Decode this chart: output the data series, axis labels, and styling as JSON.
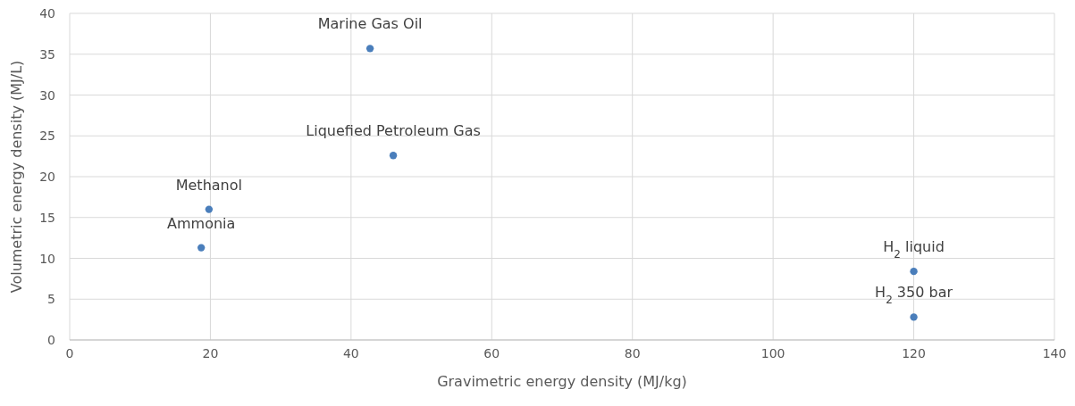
{
  "chart_data": {
    "type": "scatter",
    "xlabel": "Gravimetric energy density (MJ/kg)",
    "ylabel": "Volumetric energy density (MJ/L)",
    "x": [
      42.7,
      46,
      19.8,
      18.7,
      120,
      120
    ],
    "series": [
      {
        "color": "#4a7ebb",
        "values": [
          35.7,
          22.6,
          16,
          11.3,
          8.4,
          2.8
        ]
      }
    ],
    "xlim": [
      0,
      140
    ],
    "xticks": [
      0,
      20,
      40,
      60,
      80,
      100,
      120,
      140
    ],
    "ylim": [
      0,
      40
    ],
    "yticks": [
      0,
      5,
      10,
      15,
      20,
      25,
      30,
      35,
      40
    ],
    "grid": true,
    "marker": "circle",
    "annotations": [
      {
        "text": "Marine Gas Oil",
        "x": 42.7,
        "y": 35.7
      },
      {
        "text": "Liquefied Petroleum Gas",
        "x": 46,
        "y": 22.6
      },
      {
        "text": "Methanol",
        "x": 19.8,
        "y": 16
      },
      {
        "text": "Ammonia",
        "x": 18.7,
        "y": 11.3
      },
      {
        "text": "H$_{2}$ liquid",
        "x": 120,
        "y": 8.4
      },
      {
        "text": "H$_{2}$ 350 bar",
        "x": 120,
        "y": 2.8
      }
    ]
  }
}
